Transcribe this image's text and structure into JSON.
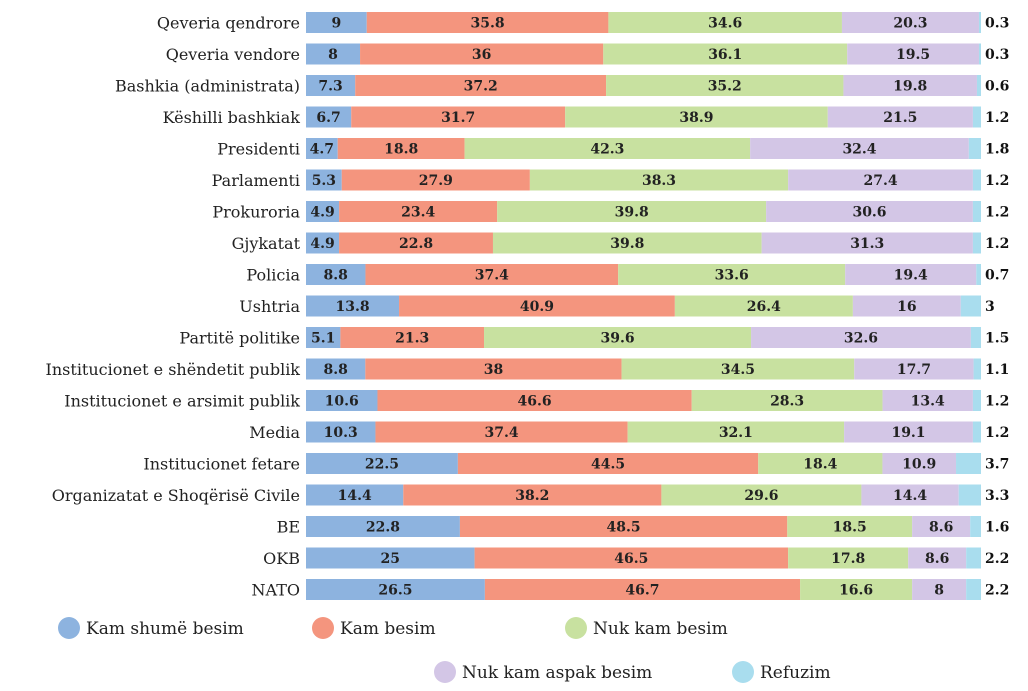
{
  "chart_data": {
    "type": "bar",
    "orientation": "horizontal",
    "stacked": true,
    "categories": [
      "Qeveria qendrore",
      "Qeveria vendore",
      "Bashkia (administrata)",
      "Këshilli bashkiak",
      "Presidenti",
      "Parlamenti",
      "Prokuroria",
      "Gjykatat",
      "Policia",
      "Ushtria",
      "Partitë politike",
      "Institucionet e shëndetit publik",
      "Institucionet e arsimit publik",
      "Media",
      "Institucionet fetare",
      "Organizatat e Shoqërisë Civile",
      "BE",
      "OKB",
      "NATO"
    ],
    "series": [
      {
        "name": "Kam shumë besim",
        "color": "#8db3df",
        "values": [
          9,
          8,
          7.3,
          6.7,
          4.7,
          5.3,
          4.9,
          4.9,
          8.8,
          13.8,
          5.1,
          8.8,
          10.6,
          10.3,
          22.5,
          14.4,
          22.8,
          25,
          26.5
        ]
      },
      {
        "name": "Kam besim",
        "color": "#f4957e",
        "values": [
          35.8,
          36,
          37.2,
          31.7,
          18.8,
          27.9,
          23.4,
          22.8,
          37.4,
          40.9,
          21.3,
          38,
          46.6,
          37.4,
          44.5,
          38.2,
          48.5,
          46.5,
          46.7
        ]
      },
      {
        "name": "Nuk kam besim",
        "color": "#c8e1a0",
        "values": [
          34.6,
          36.1,
          35.2,
          38.9,
          42.3,
          38.3,
          39.8,
          39.8,
          33.6,
          26.4,
          39.6,
          34.5,
          28.3,
          32.1,
          18.4,
          29.6,
          18.5,
          17.8,
          16.6
        ]
      },
      {
        "name": "Nuk kam aspak besim",
        "color": "#d3c6e6",
        "values": [
          20.3,
          19.5,
          19.8,
          21.5,
          32.4,
          27.4,
          30.6,
          31.3,
          19.4,
          16,
          32.6,
          17.7,
          13.4,
          19.1,
          10.9,
          14.4,
          8.6,
          8.6,
          8
        ]
      },
      {
        "name": "Refuzim",
        "color": "#a9ddee",
        "values": [
          0.3,
          0.3,
          0.6,
          1.2,
          1.8,
          1.2,
          1.2,
          1.2,
          0.7,
          3,
          1.5,
          1.1,
          1.2,
          1.2,
          3.7,
          3.3,
          1.6,
          2.2,
          2.2
        ]
      }
    ],
    "xlim": [
      0,
      100
    ],
    "grid": false,
    "legend": "bottom"
  }
}
